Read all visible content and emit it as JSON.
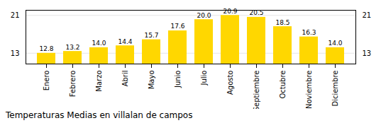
{
  "chart_data": {
    "type": "bar",
    "title": "Temperaturas Medias en villalan de campos",
    "categories": [
      "Enero",
      "Febrero",
      "Marzo",
      "Abril",
      "Mayo",
      "Junio",
      "Julio",
      "Agosto",
      "Septiembre",
      "Octubre",
      "Noviembre",
      "Diciembre"
    ],
    "values": [
      12.8,
      13.2,
      14.0,
      14.4,
      15.7,
      17.6,
      20.0,
      20.9,
      20.5,
      18.5,
      16.3,
      14.0
    ],
    "value_labels": [
      "12.8",
      "13.2",
      "14.0",
      "14.4",
      "15.7",
      "17.6",
      "20.0",
      "20.9",
      "20.5",
      "18.5",
      "16.3",
      "14.0"
    ],
    "color": "#FFD700",
    "ylim": [
      10.5,
      22.0
    ],
    "yticks": [
      12.8,
      20.9
    ],
    "grid": true,
    "data_labels": true
  }
}
